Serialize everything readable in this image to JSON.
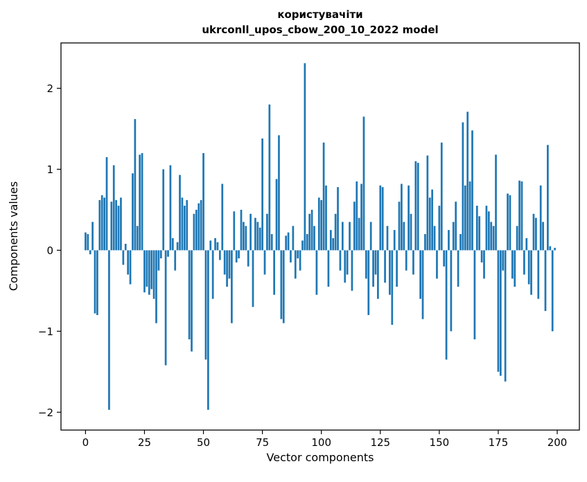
{
  "titles": {
    "line1": "користувачіти",
    "line2": "ukrconll_upos_cbow_200_10_2022 model"
  },
  "chart_data": {
    "type": "bar",
    "title": "користувачіти\nukrconll_upos_cbow_200_10_2022 model",
    "xlabel": "Vector components",
    "ylabel": "Components values",
    "bar_color": "#1f77b4",
    "spine_color": "#000000",
    "x_start": 0,
    "xticks": [
      0,
      25,
      50,
      75,
      100,
      125,
      150,
      175,
      200
    ],
    "yticks": [
      -2,
      -1,
      0,
      1,
      2
    ],
    "ytick_labels": [
      "−2",
      "−1",
      "0",
      "1",
      "2"
    ],
    "xlim": [
      -10.4,
      209.4
    ],
    "ylim": [
      -2.22,
      2.56
    ],
    "grid": false,
    "legend": "none",
    "values": [
      0.22,
      0.2,
      -0.05,
      0.35,
      -0.78,
      -0.8,
      0.62,
      0.68,
      0.65,
      1.15,
      -1.97,
      0.6,
      1.05,
      0.62,
      0.55,
      0.65,
      -0.18,
      0.08,
      -0.3,
      -0.42,
      0.95,
      1.62,
      0.3,
      1.18,
      1.2,
      -0.52,
      -0.45,
      -0.55,
      -0.48,
      -0.6,
      -0.9,
      -0.25,
      -0.1,
      1.0,
      -1.42,
      -0.08,
      1.05,
      0.15,
      -0.25,
      0.1,
      0.93,
      0.65,
      0.55,
      0.62,
      -1.1,
      -1.25,
      0.45,
      0.5,
      0.58,
      0.62,
      1.2,
      -1.35,
      -1.97,
      0.12,
      -0.6,
      0.15,
      0.1,
      -0.12,
      0.82,
      -0.3,
      -0.45,
      -0.35,
      -0.9,
      0.48,
      -0.15,
      -0.1,
      0.5,
      0.35,
      0.3,
      -0.2,
      0.45,
      -0.7,
      0.4,
      0.35,
      0.28,
      1.38,
      -0.3,
      0.45,
      1.8,
      0.2,
      -0.55,
      0.88,
      1.42,
      -0.85,
      -0.9,
      0.18,
      0.22,
      -0.15,
      0.3,
      -0.35,
      -0.1,
      -0.25,
      0.12,
      2.31,
      0.2,
      0.45,
      0.5,
      0.3,
      -0.55,
      0.65,
      0.62,
      1.33,
      0.8,
      -0.45,
      0.25,
      0.15,
      0.45,
      0.78,
      -0.25,
      0.35,
      -0.4,
      -0.3,
      0.35,
      -0.5,
      0.6,
      0.85,
      0.4,
      0.82,
      1.65,
      -0.35,
      -0.8,
      0.35,
      -0.45,
      -0.3,
      -0.6,
      0.8,
      0.78,
      -0.4,
      0.3,
      -0.55,
      -0.92,
      0.25,
      -0.45,
      0.6,
      0.82,
      0.35,
      -0.25,
      0.8,
      0.45,
      -0.3,
      1.1,
      1.08,
      -0.6,
      -0.85,
      0.2,
      1.17,
      0.65,
      0.75,
      0.3,
      -0.35,
      0.55,
      1.33,
      -0.2,
      -1.35,
      0.25,
      -1.0,
      0.35,
      0.6,
      -0.45,
      0.2,
      1.58,
      0.8,
      1.71,
      0.85,
      1.48,
      -1.1,
      0.55,
      0.42,
      -0.15,
      -0.35,
      0.55,
      0.48,
      0.35,
      0.3,
      1.18,
      -1.5,
      -1.55,
      -0.25,
      -1.62,
      0.7,
      0.68,
      -0.35,
      -0.45,
      0.3,
      0.86,
      0.85,
      -0.3,
      0.15,
      -0.42,
      -0.55,
      0.45,
      0.4,
      -0.6,
      0.8,
      0.35,
      -0.75,
      1.3,
      0.05,
      -1.0,
      0.03
    ]
  }
}
